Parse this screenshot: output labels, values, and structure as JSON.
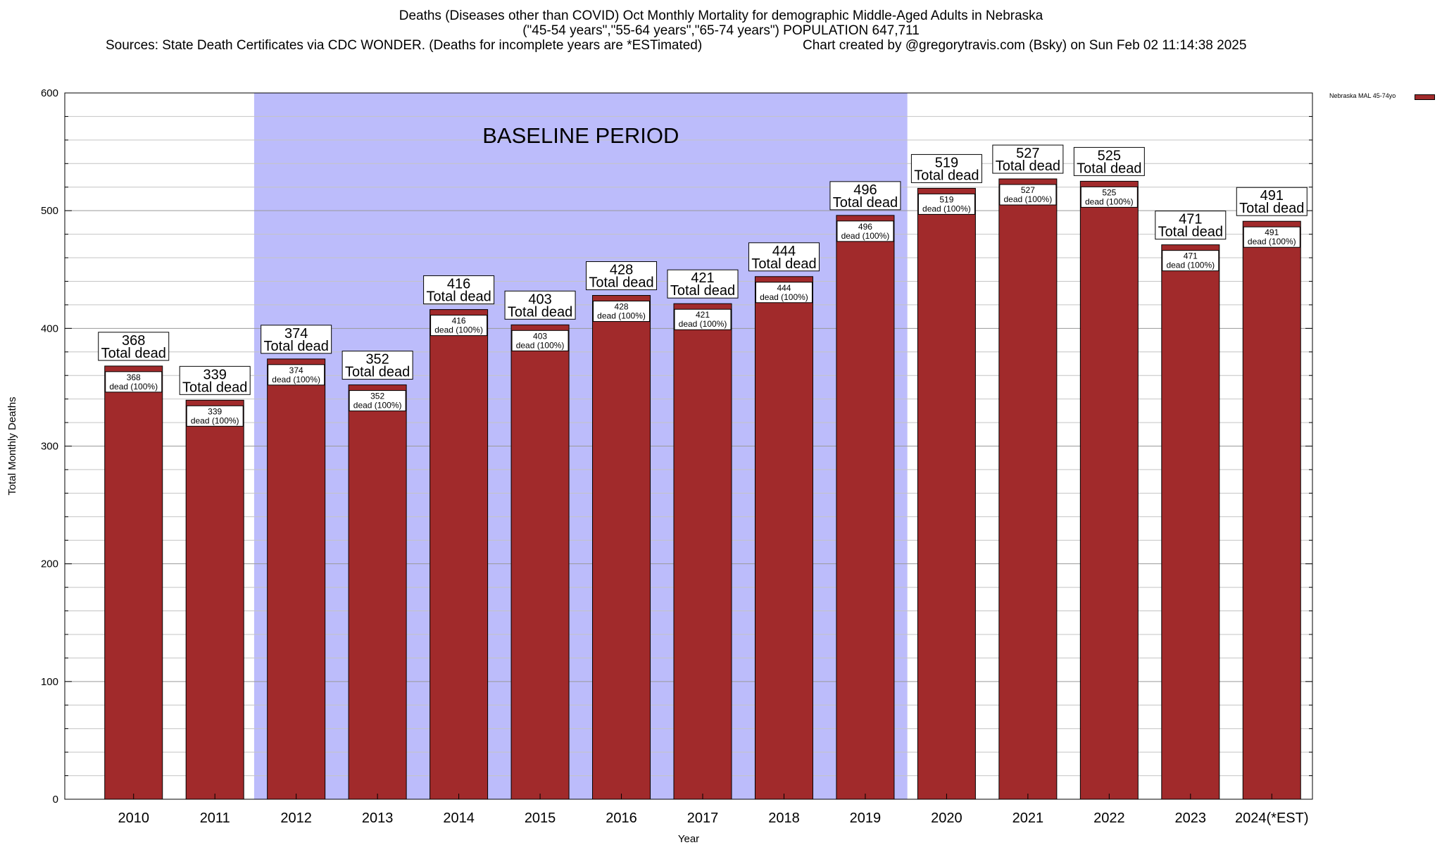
{
  "title": {
    "line1": "Deaths (Diseases other than COVID) Oct Monthly Mortality for demographic Middle-Aged Adults in Nebraska",
    "line2": "(\"45-54 years\",\"55-64 years\",\"65-74 years\") POPULATION 647,711",
    "line3": "Sources: State Death Certificates via CDC WONDER. (Deaths for incomplete years are *ESTimated)",
    "credit": "Chart created by @gregorytravis.com (Bsky) on Sun Feb 02 11:14:38 2025"
  },
  "chart_data": {
    "type": "bar",
    "categories": [
      "2010",
      "2011",
      "2012",
      "2013",
      "2014",
      "2015",
      "2016",
      "2017",
      "2018",
      "2019",
      "2020",
      "2021",
      "2022",
      "2023",
      "2024(*EST)"
    ],
    "series": [
      {
        "name": "Nebraska MAL 45-74yo",
        "values": [
          368,
          339,
          374,
          352,
          416,
          403,
          428,
          421,
          444,
          496,
          519,
          527,
          525,
          471,
          491
        ],
        "color": "#a12a2b"
      }
    ],
    "xlabel": "Year",
    "ylabel": "Total Monthly Deaths",
    "ylim": [
      0,
      600
    ],
    "yticks": [
      0,
      100,
      200,
      300,
      400,
      500,
      600
    ],
    "grid": true,
    "legend_position": "top-right",
    "baseline_period": {
      "label": "BASELINE PERIOD",
      "from": "2012",
      "to": "2019",
      "color": "#bcbcfb"
    },
    "total_label_suffix": "Total dead",
    "inner_label_suffix": "dead (100%)"
  }
}
